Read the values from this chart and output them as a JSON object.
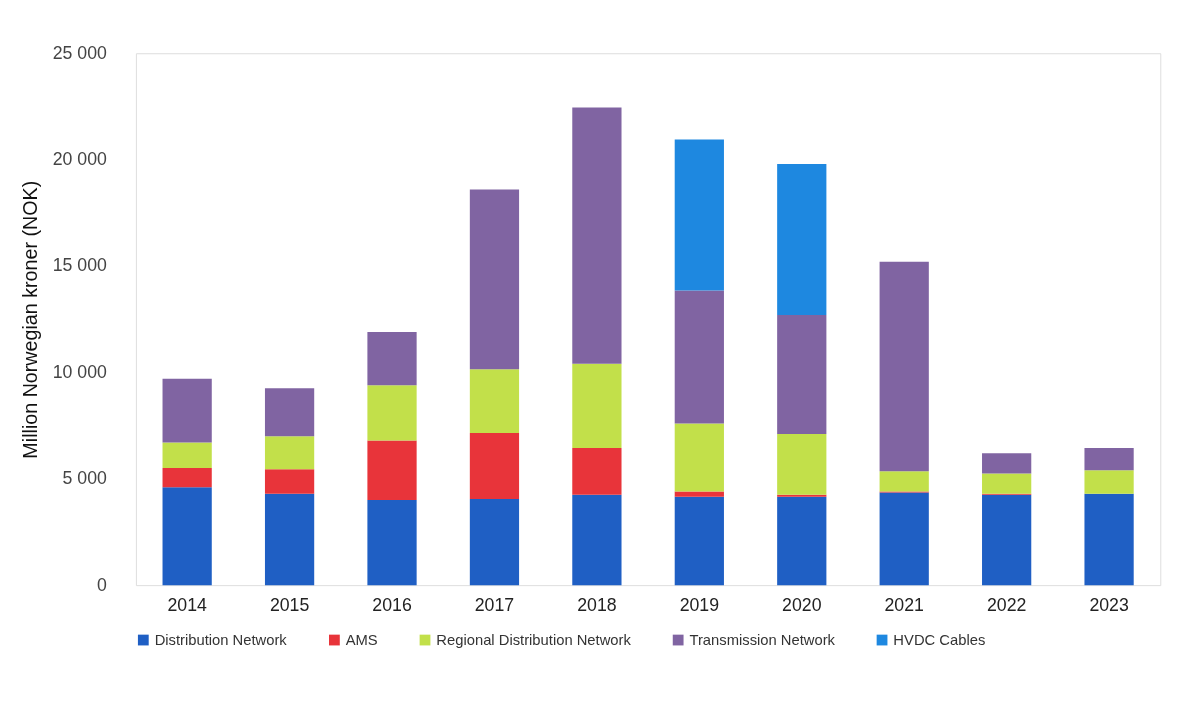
{
  "chart_data": {
    "type": "bar",
    "stacked": true,
    "ylabel": "Million Norwegian kroner (NOK)",
    "categories": [
      "2014",
      "2015",
      "2016",
      "2017",
      "2018",
      "2019",
      "2020",
      "2021",
      "2022",
      "2023"
    ],
    "series": [
      {
        "name": "Distribution Network",
        "color": "#1f5fc4",
        "values": [
          4600,
          4300,
          4000,
          4050,
          4250,
          4150,
          4150,
          4350,
          4250,
          4300
        ]
      },
      {
        "name": "AMS",
        "color": "#e8343a",
        "values": [
          900,
          1150,
          2800,
          3100,
          2200,
          250,
          100,
          50,
          50,
          0
        ]
      },
      {
        "name": "Regional Distribution Network",
        "color": "#c2e04a",
        "values": [
          1200,
          1550,
          2600,
          3000,
          3950,
          3200,
          2850,
          950,
          950,
          1100
        ]
      },
      {
        "name": "Transmission Network",
        "color": "#8064a2",
        "values": [
          3000,
          2250,
          2500,
          8450,
          12050,
          6250,
          5600,
          9850,
          950,
          1050
        ]
      },
      {
        "name": "HVDC Cables",
        "color": "#1e88e0",
        "values": [
          0,
          0,
          0,
          0,
          0,
          7100,
          7100,
          0,
          0,
          0
        ]
      }
    ],
    "ylim": [
      0,
      25000
    ],
    "yticks": [
      0,
      {
        "value": 5000,
        "label": "5 000"
      },
      {
        "value": 10000,
        "label": "10 000"
      },
      {
        "value": 15000,
        "label": "15 000"
      },
      {
        "value": 20000,
        "label": "20 000"
      },
      {
        "value": 25000,
        "label": "25 000"
      }
    ],
    "grid": false,
    "legend": "bottom"
  }
}
